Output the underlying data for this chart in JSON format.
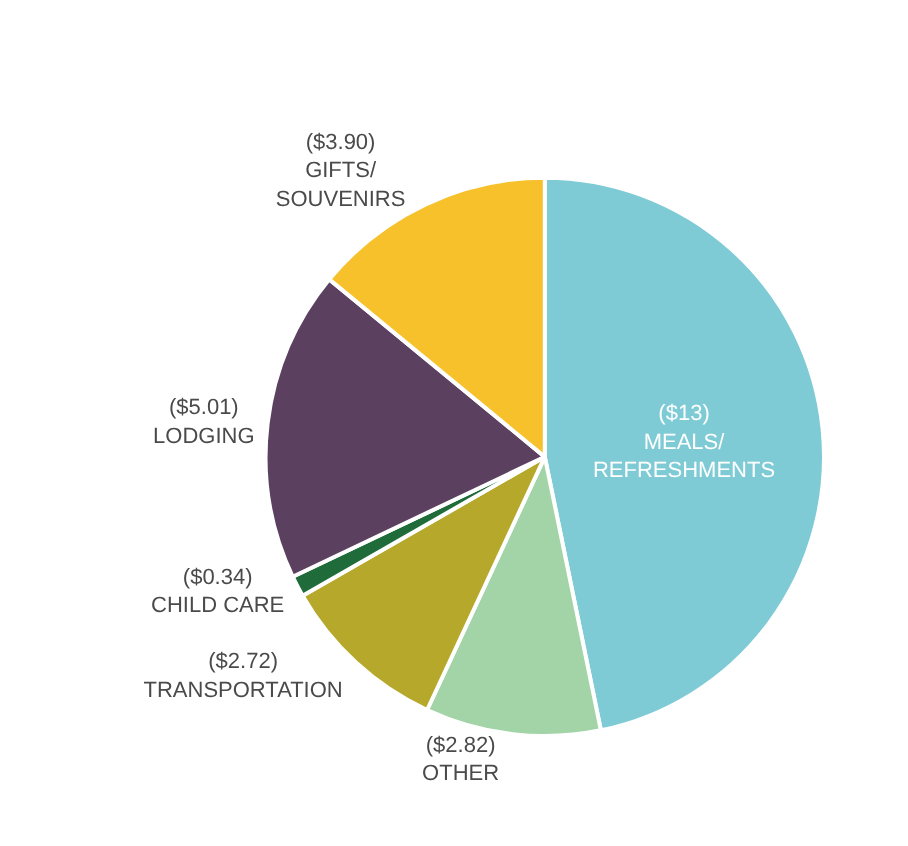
{
  "chart_data": {
    "type": "pie",
    "categories": [
      "MEALS/ REFRESHMENTS",
      "OTHER",
      "TRANSPORTATION",
      "CHILD CARE",
      "LODGING",
      "GIFTS/ SOUVENIRS"
    ],
    "values": [
      13,
      2.82,
      2.72,
      0.34,
      5.01,
      3.9
    ],
    "value_labels": [
      "($13)",
      "($2.82)",
      "($2.72)",
      "($0.34)",
      "($5.01)",
      "($3.90)"
    ],
    "colors": [
      "#7ecbd6",
      "#a3d4a8",
      "#b5a82a",
      "#1f6b3a",
      "#5b4060",
      "#f6c12b"
    ],
    "legend": false
  }
}
